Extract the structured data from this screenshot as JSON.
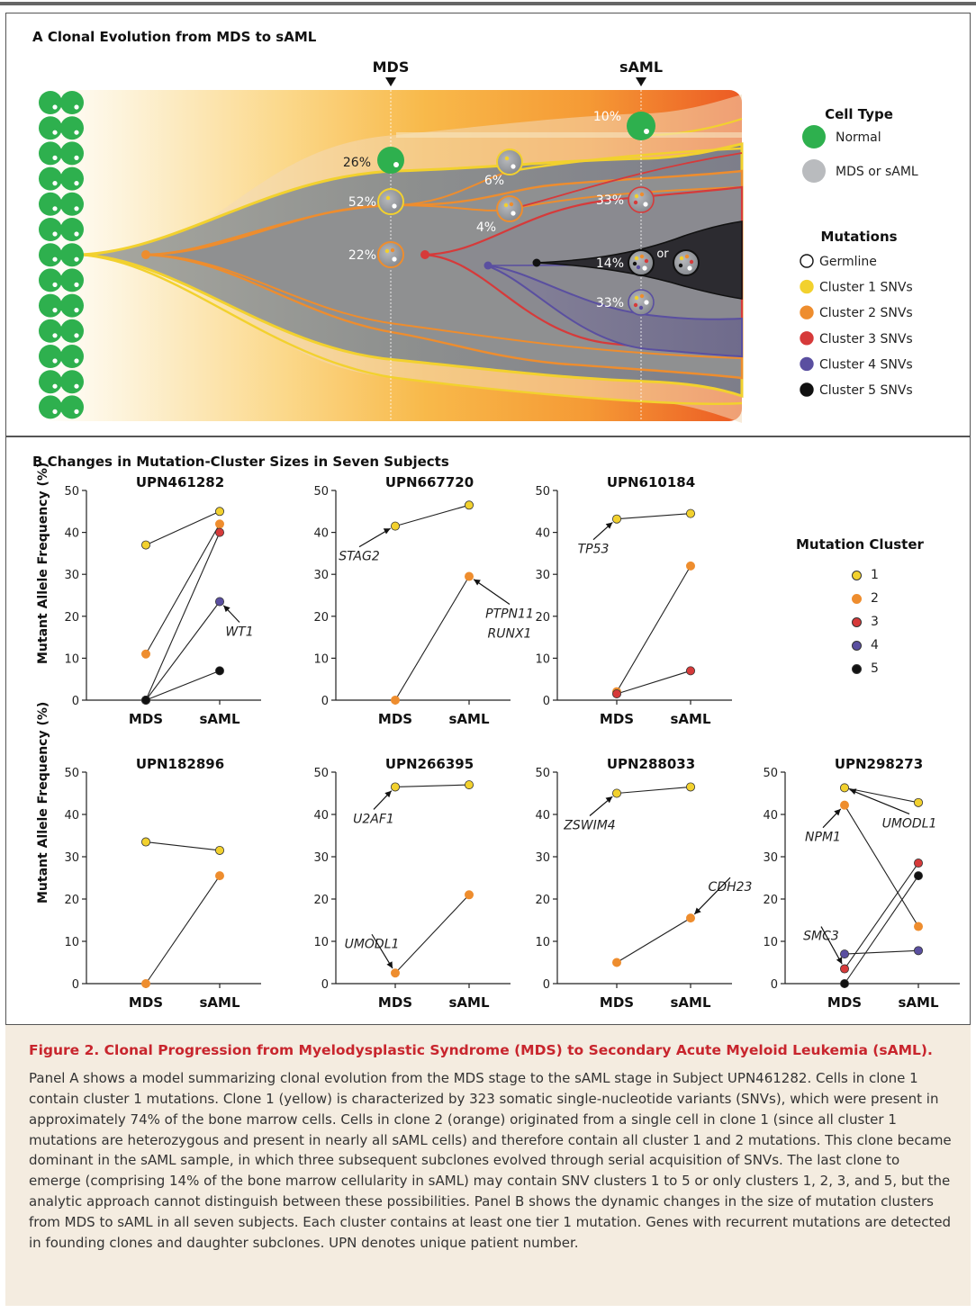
{
  "panel_a": {
    "title": "A  Clonal Evolution from MDS to sAML",
    "stage_mds": "MDS",
    "stage_saml": "sAML",
    "pct_labels": [
      "26%",
      "52%",
      "22%",
      "6%",
      "4%",
      "10%",
      "33%",
      "14%",
      "33%"
    ],
    "or_label": "or",
    "legend": {
      "cell_type_title": "Cell Type",
      "normal": "Normal",
      "mds": "MDS or sAML",
      "mutations_title": "Mutations",
      "items": [
        "Germline",
        "Cluster 1 SNVs",
        "Cluster 2 SNVs",
        "Cluster 3 SNVs",
        "Cluster 4 SNVs",
        "Cluster 5 SNVs"
      ]
    }
  },
  "panel_b": {
    "title": "B  Changes in Mutation-Cluster Sizes in Seven Subjects",
    "ylabel": "Mutant Allele Frequency (%)",
    "legend_title": "Mutation Cluster",
    "legend_items": [
      "1",
      "2",
      "3",
      "4",
      "5"
    ]
  },
  "colors": {
    "c1": "#f2d12e",
    "c2": "#ee8d2e",
    "c3": "#d63a3a",
    "c4": "#5a4fa0",
    "c5": "#111111",
    "normal": "#2eb04e",
    "caption_title": "#c8252d",
    "caption_bg": "#f4ece0"
  },
  "chart_data": [
    {
      "type": "scatter",
      "title": "UPN461282",
      "categories": [
        "MDS",
        "sAML"
      ],
      "ylim": [
        0,
        50
      ],
      "yticks": [
        0,
        10,
        20,
        30,
        40,
        50
      ],
      "series": [
        {
          "cluster": 1,
          "values": [
            37,
            45
          ]
        },
        {
          "cluster": 2,
          "values": [
            11,
            42
          ]
        },
        {
          "cluster": 3,
          "values": [
            0,
            40
          ]
        },
        {
          "cluster": 4,
          "values": [
            0,
            23.5
          ]
        },
        {
          "cluster": 5,
          "values": [
            0,
            7
          ]
        }
      ],
      "annotations": [
        {
          "text": "WT1",
          "cluster": 4,
          "at": "sAML"
        }
      ]
    },
    {
      "type": "scatter",
      "title": "UPN667720",
      "categories": [
        "MDS",
        "sAML"
      ],
      "ylim": [
        0,
        50
      ],
      "yticks": [
        0,
        10,
        20,
        30,
        40,
        50
      ],
      "series": [
        {
          "cluster": 1,
          "values": [
            41.5,
            46.5
          ]
        },
        {
          "cluster": 2,
          "values": [
            0,
            29.5
          ]
        }
      ],
      "annotations": [
        {
          "text": "STAG2",
          "cluster": 1,
          "at": "MDS"
        },
        {
          "text": "PTPN11",
          "cluster": 2,
          "at": "sAML"
        },
        {
          "text": "RUNX1",
          "cluster": 2,
          "at": "sAML"
        }
      ]
    },
    {
      "type": "scatter",
      "title": "UPN610184",
      "categories": [
        "MDS",
        "sAML"
      ],
      "ylim": [
        0,
        50
      ],
      "yticks": [
        0,
        10,
        20,
        30,
        40,
        50
      ],
      "series": [
        {
          "cluster": 1,
          "values": [
            43.2,
            44.5
          ]
        },
        {
          "cluster": 2,
          "values": [
            2,
            32
          ]
        },
        {
          "cluster": 3,
          "values": [
            1.5,
            7
          ]
        }
      ],
      "annotations": [
        {
          "text": "TP53",
          "cluster": 1,
          "at": "MDS"
        }
      ]
    },
    {
      "type": "scatter",
      "title": "UPN182896",
      "categories": [
        "MDS",
        "sAML"
      ],
      "ylim": [
        0,
        50
      ],
      "yticks": [
        0,
        10,
        20,
        30,
        40,
        50
      ],
      "series": [
        {
          "cluster": 1,
          "values": [
            33.5,
            31.5
          ]
        },
        {
          "cluster": 2,
          "values": [
            0,
            25.5
          ]
        }
      ],
      "annotations": []
    },
    {
      "type": "scatter",
      "title": "UPN266395",
      "categories": [
        "MDS",
        "sAML"
      ],
      "ylim": [
        0,
        50
      ],
      "yticks": [
        0,
        10,
        20,
        30,
        40,
        50
      ],
      "series": [
        {
          "cluster": 1,
          "values": [
            46.5,
            47
          ]
        },
        {
          "cluster": 2,
          "values": [
            2.5,
            21
          ]
        }
      ],
      "annotations": [
        {
          "text": "U2AF1",
          "cluster": 1,
          "at": "MDS"
        },
        {
          "text": "UMODL1",
          "cluster": 2,
          "at": "MDS"
        }
      ]
    },
    {
      "type": "scatter",
      "title": "UPN288033",
      "categories": [
        "MDS",
        "sAML"
      ],
      "ylim": [
        0,
        50
      ],
      "yticks": [
        0,
        10,
        20,
        30,
        40,
        50
      ],
      "series": [
        {
          "cluster": 1,
          "values": [
            45,
            46.5
          ]
        },
        {
          "cluster": 2,
          "values": [
            5,
            15.5
          ]
        }
      ],
      "annotations": [
        {
          "text": "ZSWIM4",
          "cluster": 1,
          "at": "MDS"
        },
        {
          "text": "CDH23",
          "cluster": 2,
          "at": "sAML"
        }
      ]
    },
    {
      "type": "scatter",
      "title": "UPN298273",
      "categories": [
        "MDS",
        "sAML"
      ],
      "ylim": [
        0,
        50
      ],
      "yticks": [
        0,
        10,
        20,
        30,
        40,
        50
      ],
      "series": [
        {
          "cluster": 1,
          "values": [
            46.3,
            42.8
          ]
        },
        {
          "cluster": 2,
          "values": [
            42.2,
            13.5
          ]
        },
        {
          "cluster": 3,
          "values": [
            3.5,
            28.5
          ]
        },
        {
          "cluster": 4,
          "values": [
            7,
            7.8
          ]
        },
        {
          "cluster": 5,
          "values": [
            0,
            25.5
          ]
        }
      ],
      "annotations": [
        {
          "text": "NPM1",
          "cluster": 2,
          "at": "MDS"
        },
        {
          "text": "UMODL1",
          "cluster": 1,
          "at": "MDS"
        },
        {
          "text": "SMC3",
          "cluster": 3,
          "at": "MDS"
        }
      ]
    }
  ],
  "caption": {
    "title": "Figure 2. Clonal Progression from Myelodysplastic Syndrome (MDS) to Secondary Acute Myeloid Leukemia (sAML).",
    "body": "Panel A shows a model summarizing clonal evolution from the MDS stage to the sAML stage in Subject UPN461282. Cells in clone 1 contain cluster 1 mutations. Clone 1 (yellow) is characterized by 323 somatic single-nucleotide variants (SNVs), which were present in approximately 74% of the bone marrow cells. Cells in clone 2 (orange) originated from a single cell in clone 1 (since all cluster 1 mutations are heterozygous and present in nearly all sAML cells) and therefore contain all cluster 1 and 2 mutations. This clone became dominant in the sAML sample, in which three subsequent subclones evolved through serial acquisition of SNVs. The last clone to emerge (comprising 14% of the bone marrow cellularity in sAML) may contain SNV clusters 1 to 5 or only clusters 1, 2, 3, and 5, but the analytic approach cannot distinguish between these possibilities. Panel B shows the dynamic changes in the size of mutation clusters from MDS to sAML in all seven subjects. Each cluster contains at least one tier 1 mutation. Genes with recurrent mutations are detected in founding clones and daughter subclones. UPN denotes unique patient number."
  }
}
